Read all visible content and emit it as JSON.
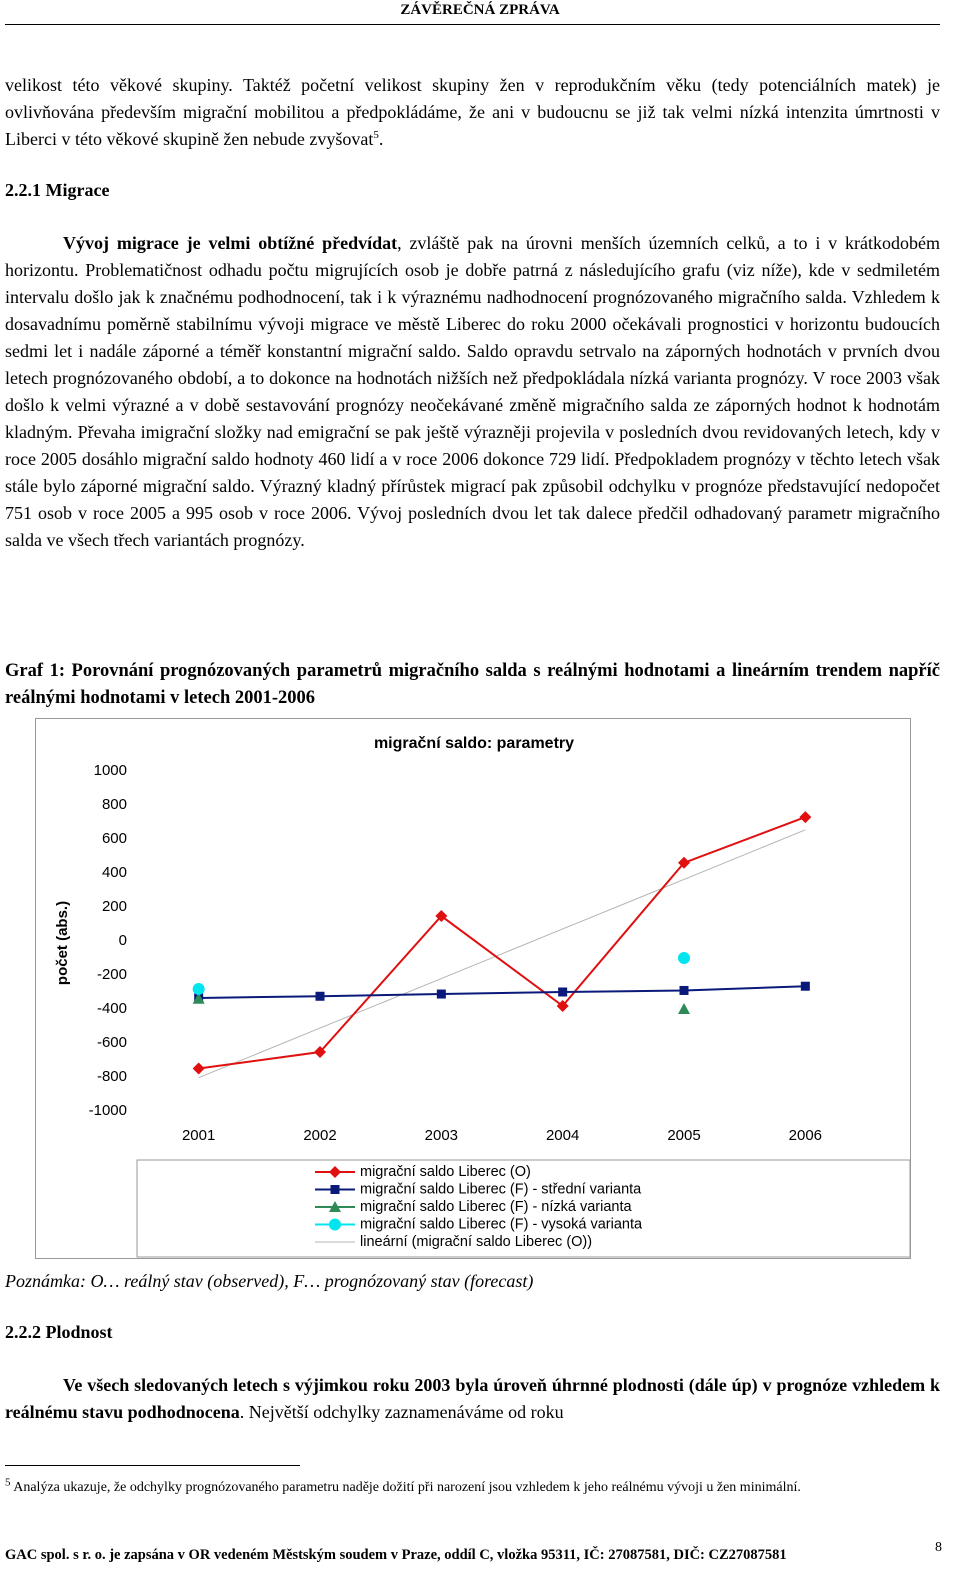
{
  "header": {
    "title": "ZÁVĚREČNÁ ZPRÁVA"
  },
  "paragraphs": [
    {
      "text": "velikost této věkové skupiny. Taktéž početní velikost skupiny žen v reprodukčním věku (tedy potenciálních matek) je ovlivňována především migrační mobilitou a předpokládáme, že ani v budoucnu se již tak velmi nízká intenzita úmrtnosti v Liberci v této věkové skupině žen nebude zvyšovat",
      "footnote_ref": "5",
      "end": "."
    },
    {
      "heading": "2.2.1 Migrace"
    },
    {
      "bold": "Vývoj migrace je velmi obtížné předvídat",
      "text": ", zvláště pak na úrovni menších územních celků, a to i v krátkodobém horizontu. Problematičnost odhadu počtu migrujících osob je dobře patrná z následujícího grafu (viz níže), kde v sedmiletém intervalu došlo jak k značnému podhodnocení, tak i k výraznému nadhodnocení prognózovaného migračního salda. Vzhledem k dosavadnímu poměrně stabilnímu vývoji migrace ve městě Liberec do roku 2000 očekávali prognostici v horizontu budoucích sedmi let i nadále záporné a téměř konstantní migrační saldo. Saldo opravdu setrvalo na záporných hodnotách v prvních dvou letech prognózovaného období, a to dokonce na hodnotách nižších než předpokládala nízká varianta prognózy. V roce 2003 však došlo k velmi výrazné a v době sestavování prognózy neočekávané změně migračního salda ze záporných hodnot k hodnotám kladným. Převaha imigrační složky nad emigrační se pak ještě výrazněji projevila v posledních dvou revidovaných letech, kdy v roce 2005 dosáhlo migrační saldo hodnoty 460 lidí a v roce 2006 dokonce 729 lidí. Předpokladem prognózy v těchto letech však stále bylo záporné migrační saldo. Výrazný kladný přírůstek migrací pak způsobil odchylku v prognóze představující nedopočet 751 osob v roce 2005 a 995 osob v roce 2006. Vývoj posledních dvou let tak dalece předčil odhadovaný parametr migračního salda ve všech třech variantách prognózy."
    },
    {
      "caption": "Graf 1: Porovnání prognózovaných parametrů migračního salda s reálnými hodnotami a lineárním trendem napříč reálnými hodnotami v letech 2001-2006"
    },
    {
      "note": "Poznámka: O… reálný stav (observed), F… prognózovaný stav (forecast)"
    },
    {
      "heading": "2.2.2 Plodnost"
    },
    {
      "bold": "Ve všech sledovaných letech s výjimkou roku 2003 byla úroveň úhrnné plodnosti (dále úp) v prognóze vzhledem k reálnému stavu podhodnocena",
      "text": ". Největší odchylky zaznamenáváme od roku"
    }
  ],
  "footnote": {
    "marker": "5",
    "text": "Analýza ukazuje, že odchylky prognózovaného parametru naděje dožití při narození jsou vzhledem k jeho reálnému vývoji u žen minimální."
  },
  "footer": {
    "text": "GAC spol. s r. o. je zapsána v OR vedeném Městským soudem v Praze, oddíl C, vložka 95311, IČ: 27087581, DIČ: CZ27087581",
    "page": "8"
  },
  "chart_data": {
    "type": "line",
    "title": "migrační saldo: parametry",
    "y_label": "počet (abs.)",
    "categories": [
      "2001",
      "2002",
      "2003",
      "2004",
      "2005",
      "2006"
    ],
    "ylim": [
      -1000,
      1000
    ],
    "yticks": [
      -1000,
      -800,
      -600,
      -400,
      -200,
      0,
      200,
      400,
      600,
      800,
      1000
    ],
    "grid": false,
    "legend": "bottom",
    "series": [
      {
        "name": "migrační saldo Liberec (O)",
        "color": "#e01010",
        "marker": "diamond",
        "values": [
          -750,
          -653,
          147,
          -382,
          460,
          729
        ]
      },
      {
        "name": "migrační saldo Liberec (F) - střední varianta",
        "color": "#0a1a7a",
        "marker": "square",
        "values": [
          -335,
          -325,
          -312,
          -300,
          -291,
          -266
        ]
      },
      {
        "name": "migrační saldo Liberec (F) - nízká varianta",
        "color": "#2e8b57",
        "marker": "triangle",
        "values": [
          -340,
          null,
          null,
          null,
          -400,
          null
        ]
      },
      {
        "name": "migrační saldo Liberec (F) - vysoká varianta",
        "color": "#00e5ee",
        "marker": "circle",
        "values": [
          -282,
          null,
          null,
          null,
          -100,
          null
        ]
      },
      {
        "name": "lineární (migrační saldo Liberec (O))",
        "color": "#b4b4b4",
        "marker": "none",
        "values": [
          -804,
          -512,
          -221,
          71,
          362,
          654
        ]
      }
    ]
  }
}
